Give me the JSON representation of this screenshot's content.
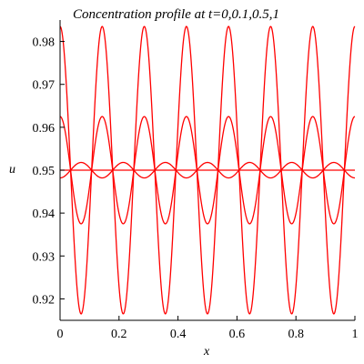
{
  "chart_data": {
    "type": "line",
    "title": "Concentration profile at t=0,0.1,0.5,1",
    "xlabel": "x",
    "ylabel": "u",
    "xlim": [
      0,
      1
    ],
    "ylim": [
      0.915,
      0.985
    ],
    "x_ticks": [
      0,
      0.2,
      0.4,
      0.6,
      0.8,
      1
    ],
    "x_tick_labels": [
      "0",
      "0.2",
      "0.4",
      "0.6",
      "0.8",
      "1"
    ],
    "y_ticks": [
      0.92,
      0.93,
      0.94,
      0.95,
      0.96,
      0.97,
      0.98
    ],
    "y_tick_labels": [
      "0.92",
      "0.93",
      "0.94",
      "0.95",
      "0.96",
      "0.97",
      "0.98"
    ],
    "grid": false,
    "legend": "none",
    "line_color": "#ff0000",
    "wave_periods": 7,
    "series": [
      {
        "mean": 0.95,
        "amplitude": 0.0335,
        "phase": "cos"
      },
      {
        "mean": 0.95,
        "amplitude": 0.0125,
        "phase": "cos"
      },
      {
        "mean": 0.95,
        "amplitude": 0.0018,
        "phase": "-cos"
      },
      {
        "mean": 0.95,
        "amplitude": 0.0,
        "phase": "cos"
      }
    ]
  }
}
